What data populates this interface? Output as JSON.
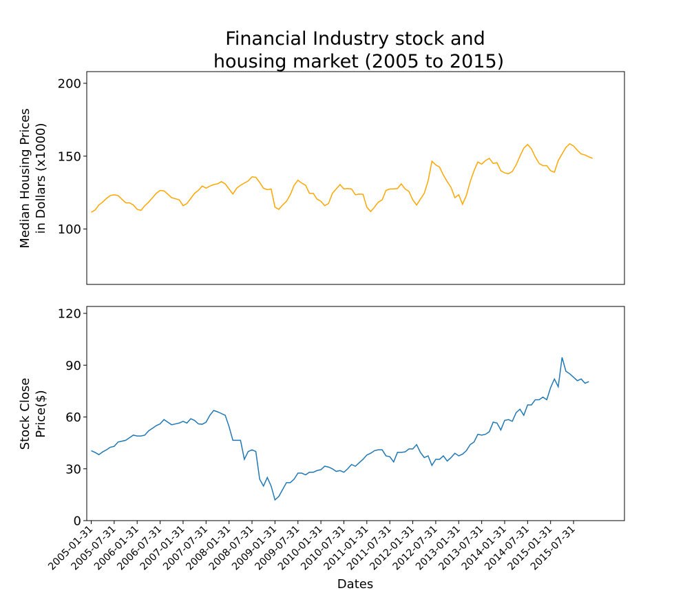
{
  "figure": {
    "title_lines": [
      "Financial Industry stock and",
      "housing market (2005 to 2015)"
    ],
    "xlabel": "Dates"
  },
  "chart_data": [
    {
      "type": "line",
      "ylabel_lines": [
        "Median Housing Prices",
        "in Dollars (x1000)"
      ],
      "ylim": [
        62,
        208
      ],
      "yticks": [
        100,
        150,
        200
      ],
      "grid": false,
      "series": [
        {
          "color": "#ffa500",
          "values": [
            111.5,
            113,
            116.5,
            118.5,
            121,
            123,
            123.5,
            123,
            120.5,
            118,
            118,
            116.5,
            113.5,
            112.8,
            116,
            118.5,
            121.5,
            124.5,
            126.5,
            126.2,
            124,
            121.5,
            120.8,
            120,
            116,
            117.5,
            121,
            124.5,
            126.5,
            129.5,
            128,
            129.5,
            130.5,
            131,
            132.5,
            131,
            127.5,
            124,
            128,
            130,
            131.5,
            133,
            135.8,
            135.5,
            132,
            128,
            127,
            127.5,
            115,
            113.5,
            116.5,
            119,
            123.5,
            130,
            133.5,
            131.5,
            130,
            124.5,
            124.5,
            120.5,
            119,
            116,
            117.5,
            124.5,
            127.5,
            130.5,
            127.5,
            127.8,
            127.5,
            123.5,
            124,
            123.8,
            115,
            112,
            115,
            118.5,
            120,
            126.5,
            127.5,
            127.5,
            127.8,
            131,
            127.5,
            125.8,
            120,
            116.5,
            120.5,
            124.5,
            133,
            146.5,
            144,
            142.5,
            137,
            132.5,
            128.5,
            121.5,
            123.5,
            117,
            123,
            132.5,
            140,
            146,
            144.5,
            147,
            148.5,
            145,
            145.5,
            140,
            138.5,
            138,
            139.5,
            144,
            150,
            155.5,
            158,
            155,
            149.5,
            145,
            143.5,
            143.5,
            140,
            139,
            147,
            151.5,
            156,
            158.5,
            157,
            154,
            151.5,
            150.8,
            149.5,
            148.5
          ]
        }
      ]
    },
    {
      "type": "line",
      "ylabel_lines": [
        "Stock Close",
        "Price($)"
      ],
      "ylim": [
        0,
        124
      ],
      "yticks": [
        0,
        30,
        60,
        90,
        120
      ],
      "xtick_labels": [
        "2005-01-31",
        "2005-07-31",
        "2006-01-31",
        "2006-07-31",
        "2007-01-31",
        "2007-07-31",
        "2008-01-31",
        "2008-07-31",
        "2009-01-31",
        "2009-07-31",
        "2010-01-31",
        "2010-07-31",
        "2011-01-31",
        "2011-07-31",
        "2012-01-31",
        "2012-07-31",
        "2013-01-31",
        "2013-07-31",
        "2014-01-31",
        "2014-07-31",
        "2015-01-31",
        "2015-07-31"
      ],
      "grid": false,
      "series": [
        {
          "color": "#1f77b4",
          "values": [
            40.5,
            39.5,
            38.2,
            39.8,
            41,
            42.5,
            43,
            45.5,
            46,
            46.5,
            48,
            49.5,
            49,
            49,
            49.5,
            52,
            53.5,
            55,
            56,
            58.5,
            57,
            55.5,
            56,
            56.5,
            57.5,
            56.5,
            59,
            58,
            56,
            55.8,
            57,
            61,
            63.8,
            63,
            62,
            61,
            54.5,
            46.5,
            46.5,
            46.5,
            35.5,
            40,
            41,
            40,
            24,
            20,
            25,
            20,
            12,
            14,
            18,
            22,
            22,
            24,
            27.5,
            27.5,
            26.5,
            28,
            28,
            29,
            29.5,
            31.5,
            31,
            30,
            28.5,
            29,
            28,
            30,
            32.5,
            31.5,
            33.5,
            35.5,
            38,
            39,
            40.5,
            41,
            41,
            37.5,
            37,
            34,
            39.5,
            39.5,
            39.8,
            41.5,
            41.5,
            44,
            39.5,
            36.5,
            37.5,
            32,
            35.5,
            35.5,
            37.5,
            34.5,
            36.5,
            39,
            37.5,
            38.5,
            40.5,
            44,
            45.5,
            50,
            49.5,
            50,
            51.5,
            57,
            56.5,
            52.5,
            58,
            58.5,
            57.5,
            62.5,
            64.5,
            61,
            67,
            67,
            70,
            70,
            71.5,
            70,
            77,
            82,
            77.5,
            94.5,
            86.5,
            85,
            83,
            81,
            82,
            79.5,
            80.5
          ]
        }
      ]
    }
  ]
}
